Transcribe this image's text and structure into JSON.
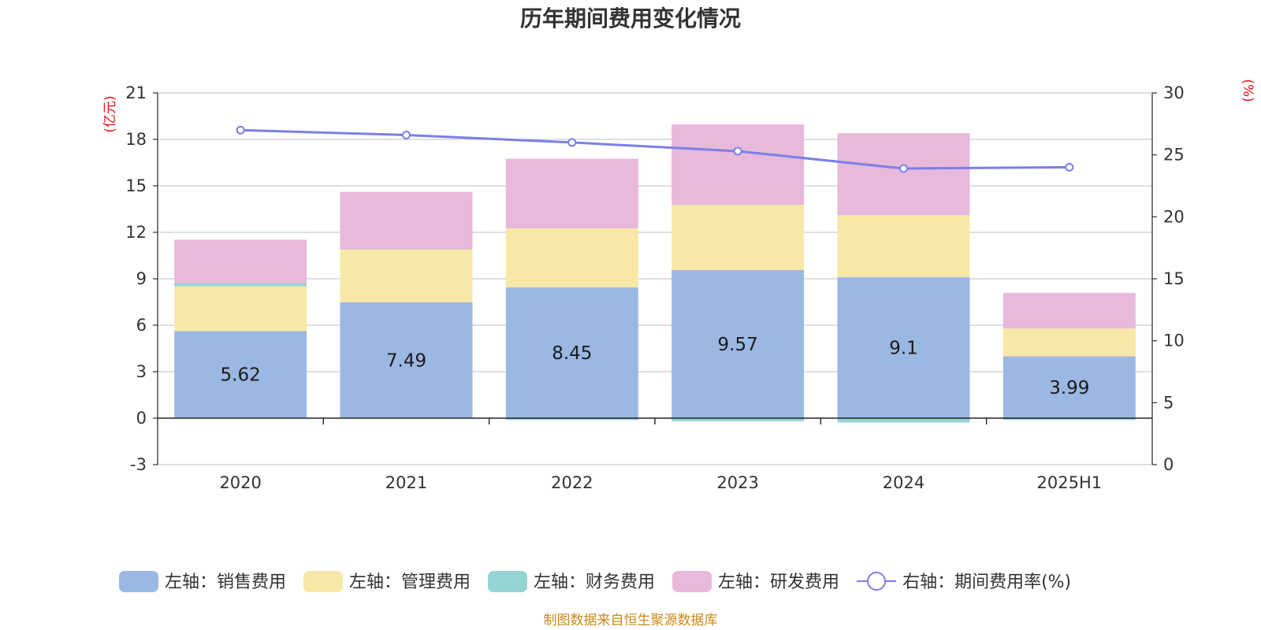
{
  "chart_data": {
    "type": "bar",
    "stacked": true,
    "title": "历年期间费用变化情况",
    "categories": [
      "2020",
      "2021",
      "2022",
      "2023",
      "2024",
      "2025H1"
    ],
    "left_axis": {
      "unit": "(亿元)",
      "ylim": [
        -3,
        21
      ],
      "ticks": [
        -3,
        0,
        3,
        6,
        9,
        12,
        15,
        18,
        21
      ]
    },
    "right_axis": {
      "unit": "(%)",
      "ylim": [
        0,
        30
      ],
      "ticks": [
        0,
        5,
        10,
        15,
        20,
        25,
        30
      ]
    },
    "series": [
      {
        "name": "左轴：销售费用",
        "axis": "left",
        "color": "#9bb8e3",
        "values": [
          5.62,
          7.49,
          8.45,
          9.57,
          9.1,
          3.99
        ],
        "show_labels": true
      },
      {
        "name": "左轴：管理费用",
        "axis": "left",
        "color": "#f8e8a8",
        "values": [
          2.9,
          3.4,
          3.8,
          4.2,
          4.0,
          1.8
        ]
      },
      {
        "name": "左轴：财务费用",
        "axis": "left",
        "color": "#96d4d4",
        "values": [
          0.2,
          0.02,
          -0.12,
          -0.2,
          -0.28,
          -0.12
        ]
      },
      {
        "name": "左轴：研发费用",
        "axis": "left",
        "color": "#e8b9da",
        "values": [
          2.8,
          3.7,
          4.5,
          5.2,
          5.3,
          2.3
        ]
      },
      {
        "name": "右轴：期间费用率(%)",
        "axis": "right",
        "type": "line",
        "color": "#7b7fe8",
        "values": [
          27.0,
          26.6,
          26.0,
          25.3,
          23.9,
          24.0
        ]
      }
    ],
    "legend_position": "bottom",
    "grid": true
  },
  "footer": {
    "source": "制图数据来自恒生聚源数据库"
  }
}
